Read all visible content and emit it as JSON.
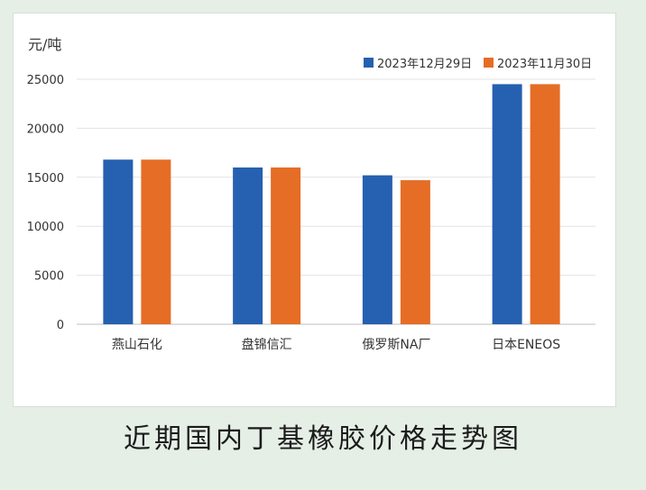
{
  "chart_data": {
    "type": "bar",
    "title": "",
    "ylabel": "元/吨",
    "xlabel": "",
    "ylim": [
      0,
      25000
    ],
    "yticks": [
      0,
      5000,
      10000,
      15000,
      20000,
      25000
    ],
    "categories": [
      "燕山石化",
      "盘锦信汇",
      "俄罗斯NA厂",
      "日本ENEOS"
    ],
    "series": [
      {
        "name": "2023年12月29日",
        "color": "#2660b0",
        "values": [
          16800,
          16000,
          15200,
          24500
        ]
      },
      {
        "name": "2023年11月30日",
        "color": "#e56d26",
        "values": [
          16800,
          16000,
          14700,
          24500
        ]
      }
    ],
    "grid": true,
    "legend": "top-right"
  },
  "caption": "近期国内丁基橡胶价格走势图"
}
